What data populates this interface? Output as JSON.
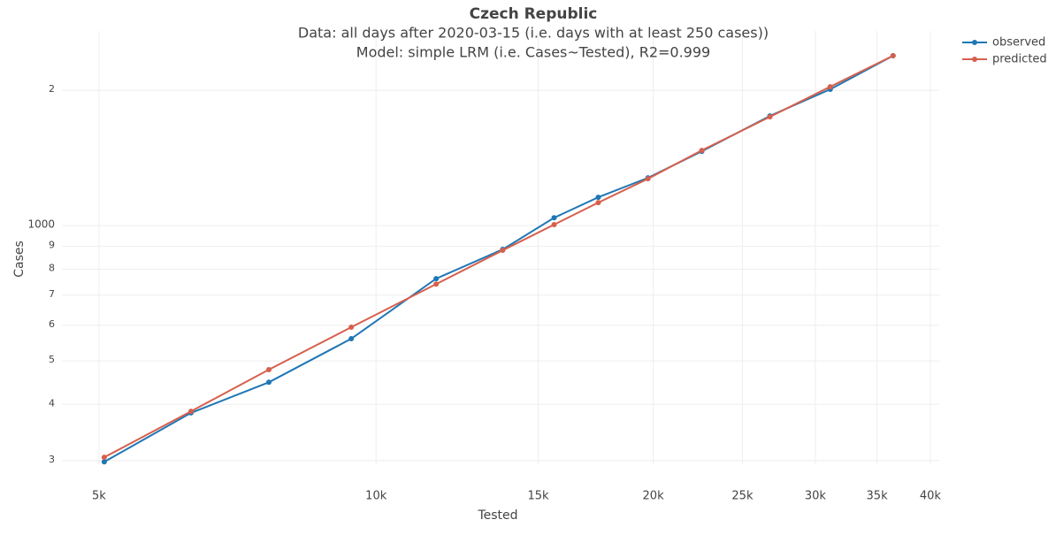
{
  "chart_data": {
    "type": "line",
    "title": "Czech Republic",
    "subtitle": [
      "Data: all days after 2020-03-15 (i.e. days with at least 250 cases))",
      "Model: simple LRM (i.e. Cases~Tested), R2=0.999"
    ],
    "x_label": "Tested",
    "y_label": "Cases",
    "x_log": true,
    "y_log": true,
    "grid": true,
    "legend": "top-right",
    "x": [
      5067,
      6295,
      7648,
      9398,
      11621,
      13726,
      15609,
      17432,
      19737,
      22584,
      26778,
      31140,
      36440
    ],
    "series": [
      {
        "name": "observed",
        "color": "#1f77b4",
        "values": [
          298,
          383,
          448,
          560,
          762,
          885,
          1041,
          1156,
          1277,
          1463,
          1754,
          2010,
          2388
        ]
      },
      {
        "name": "predicted",
        "color": "#d6604d",
        "values": [
          305,
          386,
          478,
          594,
          741,
          881,
          1005,
          1125,
          1271,
          1470,
          1746,
          2037,
          2388
        ]
      }
    ],
    "xlim": [
      4764,
      40900
    ],
    "ylim": [
      275,
      2711
    ],
    "xticks": [
      {
        "value": 5000,
        "label": "5k"
      },
      {
        "value": 10000,
        "label": "10k"
      },
      {
        "value": 15000,
        "label": "15k"
      },
      {
        "value": 20000,
        "label": "20k"
      },
      {
        "value": 25000,
        "label": "25k"
      },
      {
        "value": 30000,
        "label": "30k"
      },
      {
        "value": 35000,
        "label": "35k"
      },
      {
        "value": 40000,
        "label": "40k"
      }
    ],
    "yticks": [
      {
        "value": 300,
        "label": "3"
      },
      {
        "value": 400,
        "label": "4"
      },
      {
        "value": 500,
        "label": "5"
      },
      {
        "value": 600,
        "label": "6"
      },
      {
        "value": 700,
        "label": "7"
      },
      {
        "value": 800,
        "label": "8"
      },
      {
        "value": 900,
        "label": "9"
      },
      1000,
      {
        "value": 2000,
        "label": "2"
      }
    ]
  }
}
